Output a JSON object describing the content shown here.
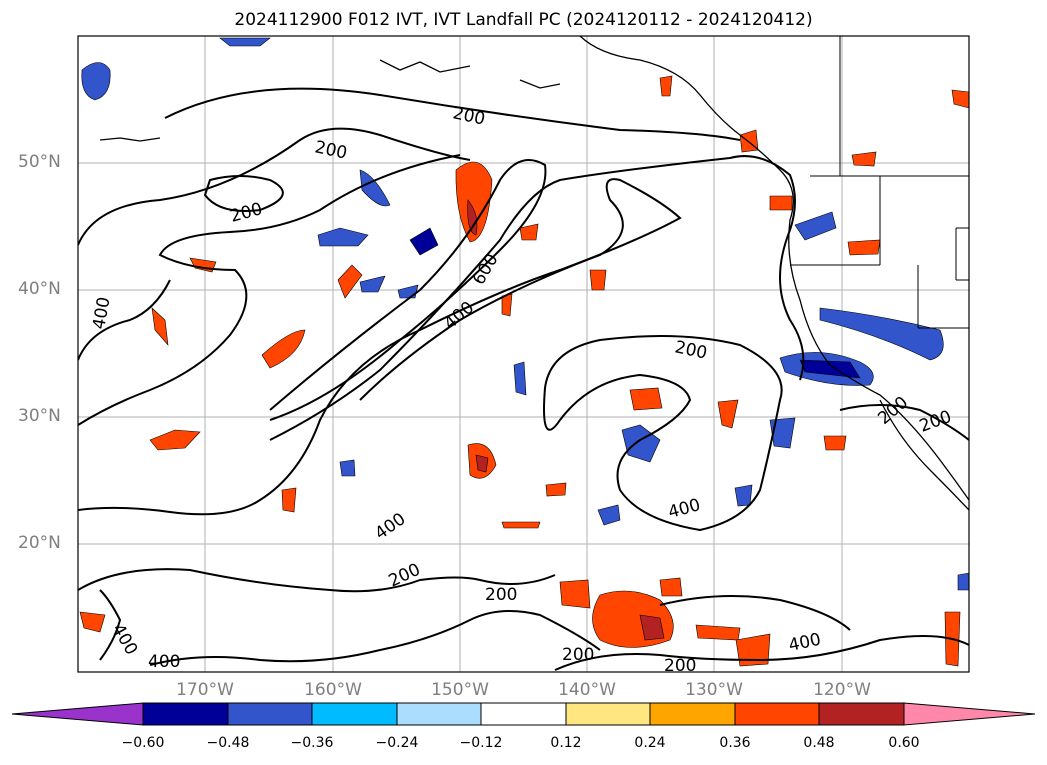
{
  "title": "2024112900 F012 IVT, IVT Landfall PC (2024120112 - 2024120412)",
  "map": {
    "lat_labels": [
      "50°N",
      "40°N",
      "30°N",
      "20°N"
    ],
    "lon_labels": [
      "170°W",
      "160°W",
      "150°W",
      "140°W",
      "130°W",
      "120°W"
    ],
    "contour_labels": [
      "200",
      "200",
      "200",
      "400",
      "600",
      "400",
      "200",
      "200",
      "200",
      "400",
      "400",
      "200",
      "200",
      "400",
      "200",
      "400",
      "200",
      "400"
    ],
    "colors": {
      "contour": "#000000",
      "grid": "#b0b0b0",
      "coast": "#000000"
    }
  },
  "colorbar": {
    "ticks": [
      "−0.60",
      "−0.48",
      "−0.36",
      "−0.24",
      "−0.12",
      "0.12",
      "0.24",
      "0.36",
      "0.48",
      "0.60"
    ],
    "colors": [
      "#9933cc",
      "#000099",
      "#3355cc",
      "#00bbff",
      "#aaddff",
      "#ffffff",
      "#ffe680",
      "#ffa500",
      "#ff4500",
      "#b22222",
      "#ff88aa"
    ]
  }
}
